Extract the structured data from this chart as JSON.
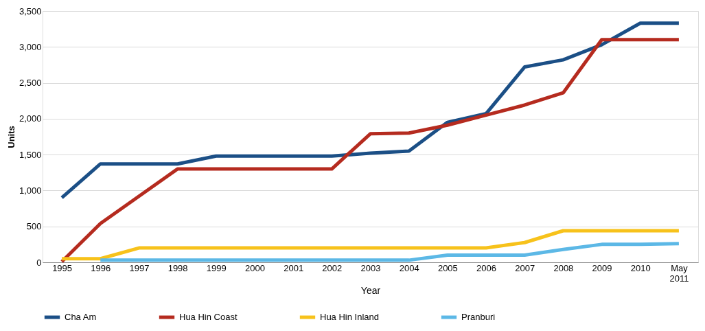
{
  "chart_data": {
    "type": "line",
    "xlabel": "Year",
    "ylabel": "Units",
    "categories": [
      "1995",
      "1996",
      "1997",
      "1998",
      "1999",
      "2000",
      "2001",
      "2002",
      "2003",
      "2004",
      "2005",
      "2006",
      "2007",
      "2008",
      "2009",
      "2010",
      "May 2011"
    ],
    "series": [
      {
        "name": "Cha Am",
        "color": "#1b4f86",
        "values": [
          900,
          1370,
          1370,
          1370,
          1480,
          1480,
          1480,
          1480,
          1520,
          1550,
          1950,
          2070,
          2720,
          2820,
          3030,
          3330,
          3330
        ]
      },
      {
        "name": "Hua Hin Coast",
        "color": "#b52b1f",
        "values": [
          10,
          540,
          920,
          1300,
          1300,
          1300,
          1300,
          1300,
          1790,
          1800,
          1910,
          2050,
          2190,
          2360,
          3100,
          3100,
          3100
        ]
      },
      {
        "name": "Hua Hin Inland",
        "color": "#f7c21b",
        "values": [
          50,
          50,
          200,
          200,
          200,
          200,
          200,
          200,
          200,
          200,
          200,
          200,
          275,
          440,
          440,
          440,
          440
        ]
      },
      {
        "name": "Pranburi",
        "color": "#5cb8e6",
        "values": [
          null,
          30,
          30,
          30,
          30,
          30,
          30,
          30,
          30,
          30,
          100,
          100,
          100,
          180,
          250,
          250,
          260
        ]
      }
    ],
    "ylim": [
      0,
      3500
    ],
    "yticks": [
      {
        "value": 0,
        "label": "0"
      },
      {
        "value": 500,
        "label": "500"
      },
      {
        "value": 1000,
        "label": "1,000"
      },
      {
        "value": 1500,
        "label": "1,500"
      },
      {
        "value": 2000,
        "label": "2,000"
      },
      {
        "value": 2500,
        "label": "2,500"
      },
      {
        "value": 3000,
        "label": "3,000"
      },
      {
        "value": 3500,
        "label": "3,500"
      }
    ],
    "grid": "y",
    "legend": "bottom",
    "marker": "none",
    "line_style": "solid"
  }
}
